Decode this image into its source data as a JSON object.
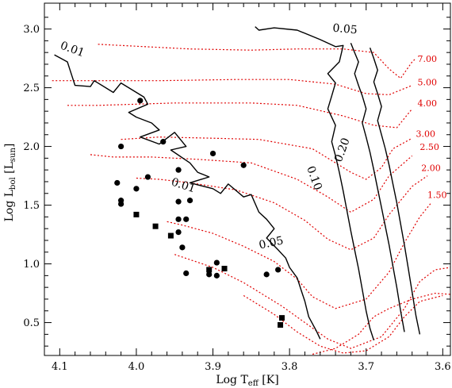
{
  "chart_data": {
    "type": "scatter",
    "title": "",
    "xlabel": "Log T",
    "xlabel_sub": "eff",
    "xlabel_unit": " [K]",
    "ylabel": "Log L",
    "ylabel_sub": "bol",
    "ylabel_unit_pre": " [L",
    "ylabel_unit_sub": "sun",
    "ylabel_unit_post": "]",
    "xlim": [
      4.12,
      3.59
    ],
    "ylim": [
      0.22,
      3.22
    ],
    "x_reversed": true,
    "x_ticks": [
      4.1,
      4.0,
      3.9,
      3.8,
      3.7,
      3.6
    ],
    "x_tick_labels": [
      "4.1",
      "4.0",
      "3.9",
      "3.8",
      "3.7",
      "3.6"
    ],
    "y_ticks": [
      0.5,
      1.0,
      1.5,
      2.0,
      2.5,
      3.0
    ],
    "y_tick_labels": [
      "0.5",
      "1.0",
      "1.5",
      "2.0",
      "2.5",
      "3.0"
    ],
    "grid": false,
    "colors": {
      "tracks": "#e00000",
      "isochrones": "#000000",
      "points": "#000000"
    },
    "evolutionary_tracks": [
      {
        "mass_label": "7.00",
        "label_at": [
          3.633,
          2.72
        ],
        "points": [
          [
            4.05,
            2.87
          ],
          [
            3.93,
            2.83
          ],
          [
            3.85,
            2.82
          ],
          [
            3.79,
            2.83
          ],
          [
            3.73,
            2.83
          ],
          [
            3.69,
            2.8
          ],
          [
            3.67,
            2.66
          ],
          [
            3.655,
            2.58
          ],
          [
            3.64,
            2.72
          ],
          [
            3.635,
            2.75
          ]
        ]
      },
      {
        "mass_label": "5.00",
        "label_at": [
          3.633,
          2.52
        ],
        "points": [
          [
            4.11,
            2.56
          ],
          [
            4.07,
            2.56
          ],
          [
            3.97,
            2.56
          ],
          [
            3.87,
            2.57
          ],
          [
            3.8,
            2.57
          ],
          [
            3.74,
            2.53
          ],
          [
            3.7,
            2.45
          ],
          [
            3.67,
            2.44
          ],
          [
            3.64,
            2.52
          ]
        ]
      },
      {
        "mass_label": "4.00",
        "label_at": [
          3.633,
          2.34
        ],
        "points": [
          [
            4.09,
            2.35
          ],
          [
            4.05,
            2.35
          ],
          [
            3.95,
            2.37
          ],
          [
            3.85,
            2.37
          ],
          [
            3.79,
            2.35
          ],
          [
            3.73,
            2.26
          ],
          [
            3.69,
            2.18
          ],
          [
            3.66,
            2.16
          ],
          [
            3.64,
            2.32
          ]
        ]
      },
      {
        "mass_label": "3.00",
        "label_at": [
          3.635,
          2.08
        ],
        "points": [
          [
            4.02,
            2.06
          ],
          [
            3.97,
            2.08
          ],
          [
            3.9,
            2.07
          ],
          [
            3.84,
            2.06
          ],
          [
            3.77,
            1.98
          ],
          [
            3.72,
            1.78
          ],
          [
            3.7,
            1.72
          ],
          [
            3.68,
            1.82
          ],
          [
            3.665,
            1.98
          ],
          [
            3.64,
            2.07
          ]
        ]
      },
      {
        "mass_label": "2.50",
        "label_at": [
          3.63,
          1.97
        ],
        "points": [
          [
            4.06,
            1.93
          ],
          [
            4.03,
            1.91
          ],
          [
            3.98,
            1.91
          ],
          [
            3.92,
            1.89
          ],
          [
            3.85,
            1.86
          ],
          [
            3.79,
            1.72
          ],
          [
            3.75,
            1.57
          ],
          [
            3.72,
            1.44
          ],
          [
            3.69,
            1.55
          ],
          [
            3.67,
            1.75
          ],
          [
            3.64,
            1.92
          ]
        ]
      },
      {
        "mass_label": "2.00",
        "label_at": [
          3.628,
          1.79
        ],
        "points": [
          [
            4.0,
            1.73
          ],
          [
            3.97,
            1.72
          ],
          [
            3.93,
            1.69
          ],
          [
            3.87,
            1.63
          ],
          [
            3.82,
            1.52
          ],
          [
            3.78,
            1.37
          ],
          [
            3.75,
            1.21
          ],
          [
            3.72,
            1.12
          ],
          [
            3.69,
            1.22
          ],
          [
            3.67,
            1.42
          ],
          [
            3.64,
            1.66
          ],
          [
            3.62,
            1.75
          ]
        ]
      },
      {
        "mass_label": "1.50",
        "label_at": [
          3.62,
          1.56
        ],
        "points": [
          [
            3.96,
            1.36
          ],
          [
            3.94,
            1.33
          ],
          [
            3.9,
            1.26
          ],
          [
            3.86,
            1.15
          ],
          [
            3.82,
            1.02
          ],
          [
            3.79,
            0.87
          ],
          [
            3.77,
            0.72
          ],
          [
            3.74,
            0.62
          ],
          [
            3.7,
            0.7
          ],
          [
            3.67,
            0.93
          ],
          [
            3.65,
            1.18
          ],
          [
            3.63,
            1.4
          ],
          [
            3.615,
            1.52
          ]
        ]
      },
      {
        "mass_label": "",
        "points": [
          [
            3.95,
            1.08
          ],
          [
            3.9,
            0.97
          ],
          [
            3.86,
            0.84
          ],
          [
            3.81,
            0.64
          ],
          [
            3.78,
            0.5
          ],
          [
            3.75,
            0.36
          ],
          [
            3.72,
            0.28
          ],
          [
            3.68,
            0.38
          ],
          [
            3.65,
            0.62
          ],
          [
            3.63,
            0.85
          ],
          [
            3.61,
            0.95
          ],
          [
            3.59,
            0.97
          ]
        ]
      },
      {
        "mass_label": "",
        "points": [
          [
            3.86,
            0.73
          ],
          [
            3.82,
            0.57
          ],
          [
            3.79,
            0.42
          ],
          [
            3.76,
            0.3
          ],
          [
            3.73,
            0.24
          ],
          [
            3.7,
            0.26
          ],
          [
            3.67,
            0.38
          ],
          [
            3.65,
            0.55
          ],
          [
            3.63,
            0.68
          ],
          [
            3.6,
            0.73
          ]
        ]
      },
      {
        "mass_label": "",
        "points": [
          [
            3.77,
            0.23
          ],
          [
            3.74,
            0.28
          ],
          [
            3.71,
            0.4
          ],
          [
            3.69,
            0.55
          ],
          [
            3.67,
            0.62
          ],
          [
            3.64,
            0.7
          ],
          [
            3.61,
            0.75
          ],
          [
            3.59,
            0.74
          ]
        ]
      }
    ],
    "isochrones": [
      {
        "label": "0.01",
        "points": [
          [
            4.107,
            2.78
          ],
          [
            4.09,
            2.72
          ],
          [
            4.085,
            2.62
          ],
          [
            4.08,
            2.52
          ],
          [
            4.06,
            2.51
          ],
          [
            4.055,
            2.56
          ],
          [
            4.03,
            2.46
          ],
          [
            4.02,
            2.54
          ],
          [
            3.99,
            2.42
          ],
          [
            3.985,
            2.36
          ],
          [
            4.01,
            2.29
          ],
          [
            4.0,
            2.25
          ],
          [
            3.98,
            2.2
          ],
          [
            3.97,
            2.14
          ],
          [
            3.995,
            2.08
          ],
          [
            3.97,
            2.02
          ],
          [
            3.95,
            2.12
          ],
          [
            3.935,
            2.0
          ],
          [
            3.955,
            1.97
          ],
          [
            3.93,
            1.86
          ],
          [
            3.92,
            1.78
          ],
          [
            3.905,
            1.74
          ],
          [
            3.93,
            1.69
          ],
          [
            3.9,
            1.64
          ],
          [
            3.89,
            1.6
          ],
          [
            3.88,
            1.68
          ],
          [
            3.86,
            1.57
          ],
          [
            3.85,
            1.59
          ],
          [
            3.84,
            1.44
          ],
          [
            3.83,
            1.38
          ],
          [
            3.82,
            1.3
          ],
          [
            3.83,
            1.22
          ],
          [
            3.815,
            1.12
          ],
          [
            3.805,
            1.05
          ],
          [
            3.8,
            0.97
          ],
          [
            3.79,
            0.88
          ],
          [
            3.785,
            0.78
          ],
          [
            3.78,
            0.68
          ],
          [
            3.775,
            0.55
          ],
          [
            3.765,
            0.43
          ],
          [
            3.76,
            0.36
          ]
        ]
      },
      {
        "label": "0.05",
        "points": [
          [
            3.845,
            3.02
          ],
          [
            3.84,
            2.99
          ],
          [
            3.82,
            3.01
          ],
          [
            3.79,
            2.99
          ],
          [
            3.76,
            2.91
          ],
          [
            3.74,
            2.85
          ],
          [
            3.73,
            2.86
          ],
          [
            3.735,
            2.72
          ],
          [
            3.75,
            2.62
          ],
          [
            3.74,
            2.54
          ],
          [
            3.745,
            2.43
          ],
          [
            3.75,
            2.32
          ],
          [
            3.74,
            2.18
          ],
          [
            3.745,
            2.04
          ],
          [
            3.74,
            1.92
          ],
          [
            3.735,
            1.78
          ],
          [
            3.73,
            1.62
          ],
          [
            3.725,
            1.45
          ],
          [
            3.72,
            1.28
          ],
          [
            3.715,
            1.12
          ],
          [
            3.71,
            0.96
          ],
          [
            3.705,
            0.78
          ],
          [
            3.7,
            0.6
          ],
          [
            3.695,
            0.45
          ],
          [
            3.69,
            0.35
          ]
        ]
      },
      {
        "label": "0.10",
        "points": [
          [
            3.72,
            2.88
          ],
          [
            3.715,
            2.8
          ],
          [
            3.71,
            2.72
          ],
          [
            3.715,
            2.62
          ],
          [
            3.71,
            2.52
          ],
          [
            3.705,
            2.43
          ],
          [
            3.7,
            2.32
          ],
          [
            3.705,
            2.2
          ],
          [
            3.7,
            2.08
          ],
          [
            3.695,
            1.95
          ],
          [
            3.69,
            1.8
          ],
          [
            3.685,
            1.64
          ],
          [
            3.68,
            1.48
          ],
          [
            3.675,
            1.32
          ],
          [
            3.67,
            1.16
          ],
          [
            3.665,
            0.98
          ],
          [
            3.66,
            0.8
          ],
          [
            3.655,
            0.6
          ],
          [
            3.65,
            0.42
          ]
        ]
      },
      {
        "label": "0.20",
        "points": [
          [
            3.695,
            2.84
          ],
          [
            3.69,
            2.75
          ],
          [
            3.685,
            2.65
          ],
          [
            3.69,
            2.55
          ],
          [
            3.685,
            2.45
          ],
          [
            3.68,
            2.34
          ],
          [
            3.685,
            2.22
          ],
          [
            3.68,
            2.1
          ],
          [
            3.675,
            1.98
          ],
          [
            3.67,
            1.84
          ],
          [
            3.665,
            1.68
          ],
          [
            3.66,
            1.52
          ],
          [
            3.655,
            1.34
          ],
          [
            3.65,
            1.16
          ],
          [
            3.645,
            0.96
          ],
          [
            3.64,
            0.76
          ],
          [
            3.635,
            0.56
          ],
          [
            3.63,
            0.4
          ]
        ]
      }
    ],
    "circles": [
      [
        3.995,
        2.39
      ],
      [
        4.02,
        2.0
      ],
      [
        3.965,
        2.04
      ],
      [
        3.9,
        1.94
      ],
      [
        3.86,
        1.84
      ],
      [
        3.985,
        1.74
      ],
      [
        3.945,
        1.8
      ],
      [
        4.025,
        1.69
      ],
      [
        4.02,
        1.54
      ],
      [
        4.02,
        1.51
      ],
      [
        4.0,
        1.64
      ],
      [
        3.945,
        1.53
      ],
      [
        3.93,
        1.54
      ],
      [
        3.945,
        1.38
      ],
      [
        3.935,
        1.38
      ],
      [
        3.945,
        1.27
      ],
      [
        3.94,
        1.14
      ],
      [
        3.935,
        0.92
      ],
      [
        3.905,
        0.91
      ],
      [
        3.895,
        1.01
      ],
      [
        3.895,
        0.9
      ],
      [
        3.83,
        0.91
      ],
      [
        3.815,
        0.95
      ]
    ],
    "squares": [
      [
        4.0,
        1.42
      ],
      [
        3.975,
        1.32
      ],
      [
        3.955,
        1.24
      ],
      [
        3.905,
        0.95
      ],
      [
        3.885,
        0.96
      ],
      [
        3.81,
        0.54
      ],
      [
        3.812,
        0.48
      ]
    ],
    "annotations": [
      {
        "text": "0.01",
        "at": [
          4.085,
          2.8
        ],
        "rotate": 20
      },
      {
        "text": "0.05",
        "at": [
          3.728,
          2.97
        ],
        "rotate": 5
      },
      {
        "text": "0.01",
        "at": [
          3.94,
          1.64
        ],
        "rotate": 18
      },
      {
        "text": "0.05",
        "at": [
          3.823,
          1.15
        ],
        "rotate": -12
      },
      {
        "text": "0.10",
        "at": [
          3.772,
          1.72
        ],
        "rotate": 70
      },
      {
        "text": "0.20",
        "at": [
          3.727,
          1.96
        ],
        "rotate": -70
      }
    ]
  }
}
